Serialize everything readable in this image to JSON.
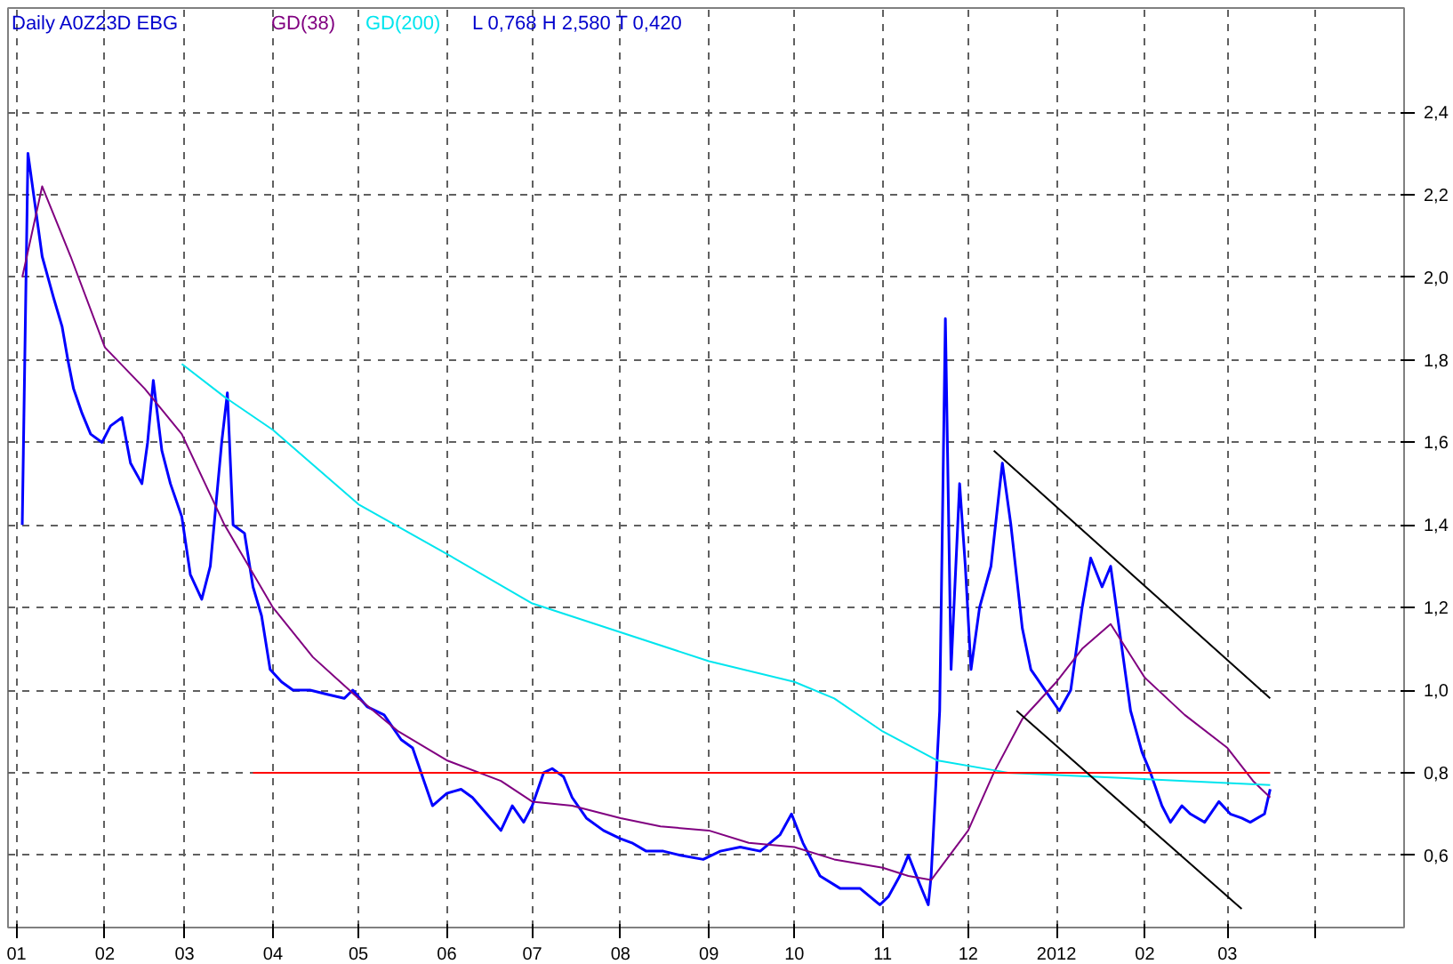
{
  "chart_data": {
    "type": "line",
    "title": "Daily   A0Z23D   EBG",
    "subtitle": "L  0,768     H  2,580     T  0,420",
    "xlim": [
      "2010-12-29",
      "2012-05-02"
    ],
    "ylim": [
      0.425,
      2.652
    ],
    "xticks": [
      {
        "value": "2011-01-01",
        "label": "01"
      },
      {
        "value": "2011-02-01",
        "label": "02"
      },
      {
        "value": "2011-03-01",
        "label": "03"
      },
      {
        "value": "2011-04-01",
        "label": "04"
      },
      {
        "value": "2011-05-01",
        "label": "05"
      },
      {
        "value": "2011-06-01",
        "label": "06"
      },
      {
        "value": "2011-07-01",
        "label": "07"
      },
      {
        "value": "2011-08-01",
        "label": "08"
      },
      {
        "value": "2011-09-01",
        "label": "09"
      },
      {
        "value": "2011-10-01",
        "label": "10"
      },
      {
        "value": "2011-11-01",
        "label": "11"
      },
      {
        "value": "2011-12-01",
        "label": "12"
      },
      {
        "value": "2012-01-01",
        "label": "2012"
      },
      {
        "value": "2012-02-01",
        "label": "02"
      },
      {
        "value": "2012-03-01",
        "label": "03"
      },
      {
        "value": "2012-04-01",
        "label": null
      }
    ],
    "yticks": [
      {
        "value": 0.6,
        "label": "0,6"
      },
      {
        "value": 0.8,
        "label": "0,8"
      },
      {
        "value": 1.0,
        "label": "1,0"
      },
      {
        "value": 1.2,
        "label": "1,2"
      },
      {
        "value": 1.4,
        "label": "1,4"
      },
      {
        "value": 1.6,
        "label": "1,6"
      },
      {
        "value": 1.8,
        "label": "1,8"
      },
      {
        "value": 2.0,
        "label": "2,0"
      },
      {
        "value": 2.2,
        "label": "2,2"
      },
      {
        "value": 2.4,
        "label": "2,4"
      }
    ],
    "grid": true,
    "legend": false,
    "line_style": "solid",
    "marker": "none",
    "series": [
      {
        "color": "#0000ff",
        "x": [
          "2011-01-03",
          "2011-01-05",
          "2011-01-07",
          "2011-01-10",
          "2011-01-12",
          "2011-01-14",
          "2011-01-17",
          "2011-01-19",
          "2011-01-21",
          "2011-01-24",
          "2011-01-27",
          "2011-01-31",
          "2011-02-03",
          "2011-02-07",
          "2011-02-10",
          "2011-02-14",
          "2011-02-16",
          "2011-02-18",
          "2011-02-21",
          "2011-02-24",
          "2011-02-28",
          "2011-03-03",
          "2011-03-07",
          "2011-03-10",
          "2011-03-14",
          "2011-03-16",
          "2011-03-18",
          "2011-03-22",
          "2011-03-25",
          "2011-03-28",
          "2011-03-31",
          "2011-04-04",
          "2011-04-08",
          "2011-04-14",
          "2011-04-20",
          "2011-04-26",
          "2011-04-29",
          "2011-05-04",
          "2011-05-10",
          "2011-05-16",
          "2011-05-20",
          "2011-05-24",
          "2011-05-27",
          "2011-06-01",
          "2011-06-06",
          "2011-06-10",
          "2011-06-15",
          "2011-06-20",
          "2011-06-24",
          "2011-06-28",
          "2011-07-01",
          "2011-07-05",
          "2011-07-08",
          "2011-07-12",
          "2011-07-15",
          "2011-07-20",
          "2011-07-26",
          "2011-08-01",
          "2011-08-05",
          "2011-08-10",
          "2011-08-16",
          "2011-08-22",
          "2011-08-30",
          "2011-09-05",
          "2011-09-12",
          "2011-09-19",
          "2011-09-26",
          "2011-09-30",
          "2011-10-04",
          "2011-10-10",
          "2011-10-17",
          "2011-10-24",
          "2011-10-31",
          "2011-11-03",
          "2011-11-07",
          "2011-11-10",
          "2011-11-14",
          "2011-11-17",
          "2011-11-18",
          "2011-11-21",
          "2011-11-23",
          "2011-11-25",
          "2011-11-28",
          "2011-11-30",
          "2011-12-02",
          "2011-12-05",
          "2011-12-09",
          "2011-12-13",
          "2011-12-16",
          "2011-12-20",
          "2011-12-23",
          "2011-12-28",
          "2012-01-02",
          "2012-01-06",
          "2012-01-10",
          "2012-01-13",
          "2012-01-17",
          "2012-01-20",
          "2012-01-24",
          "2012-01-27",
          "2012-01-31",
          "2012-02-03",
          "2012-02-07",
          "2012-02-10",
          "2012-02-14",
          "2012-02-17",
          "2012-02-22",
          "2012-02-27",
          "2012-03-02",
          "2012-03-06",
          "2012-03-09",
          "2012-03-14",
          "2012-03-16"
        ],
        "values": [
          1.4,
          2.3,
          2.2,
          2.05,
          2.0,
          1.95,
          1.88,
          1.8,
          1.73,
          1.67,
          1.62,
          1.6,
          1.64,
          1.66,
          1.55,
          1.5,
          1.6,
          1.75,
          1.58,
          1.5,
          1.42,
          1.28,
          1.22,
          1.3,
          1.6,
          1.72,
          1.4,
          1.38,
          1.25,
          1.18,
          1.05,
          1.02,
          1.0,
          1.0,
          0.99,
          0.98,
          1.0,
          0.96,
          0.94,
          0.88,
          0.86,
          0.78,
          0.72,
          0.75,
          0.76,
          0.74,
          0.7,
          0.66,
          0.72,
          0.68,
          0.72,
          0.8,
          0.81,
          0.79,
          0.74,
          0.69,
          0.66,
          0.64,
          0.63,
          0.61,
          0.61,
          0.6,
          0.59,
          0.61,
          0.62,
          0.61,
          0.65,
          0.7,
          0.63,
          0.55,
          0.52,
          0.52,
          0.48,
          0.5,
          0.55,
          0.6,
          0.53,
          0.48,
          0.55,
          0.95,
          1.9,
          1.05,
          1.5,
          1.3,
          1.05,
          1.2,
          1.3,
          1.55,
          1.4,
          1.15,
          1.05,
          1.0,
          0.95,
          1.0,
          1.2,
          1.32,
          1.25,
          1.3,
          1.1,
          0.95,
          0.85,
          0.8,
          0.72,
          0.68,
          0.72,
          0.7,
          0.68,
          0.73,
          0.7,
          0.69,
          0.68,
          0.7,
          0.76
        ]
      },
      {
        "name": "GD(38)",
        "color": "#800080",
        "x": [
          "2011-01-03",
          "2011-01-10",
          "2011-01-20",
          "2011-02-01",
          "2011-02-15",
          "2011-02-28",
          "2011-03-15",
          "2011-04-01",
          "2011-04-15",
          "2011-05-01",
          "2011-05-15",
          "2011-06-01",
          "2011-06-20",
          "2011-07-01",
          "2011-07-15",
          "2011-08-01",
          "2011-08-15",
          "2011-09-01",
          "2011-09-15",
          "2011-10-01",
          "2011-10-15",
          "2011-11-01",
          "2011-11-10",
          "2011-11-18",
          "2011-12-01",
          "2011-12-10",
          "2011-12-20",
          "2012-01-01",
          "2012-01-10",
          "2012-01-20",
          "2012-02-01",
          "2012-02-15",
          "2012-03-01",
          "2012-03-10",
          "2012-03-16"
        ],
        "values": [
          2.0,
          2.22,
          2.05,
          1.83,
          1.73,
          1.62,
          1.4,
          1.2,
          1.08,
          0.98,
          0.9,
          0.83,
          0.78,
          0.73,
          0.72,
          0.69,
          0.67,
          0.66,
          0.63,
          0.62,
          0.59,
          0.57,
          0.55,
          0.54,
          0.66,
          0.8,
          0.93,
          1.02,
          1.1,
          1.16,
          1.03,
          0.94,
          0.86,
          0.78,
          0.74
        ]
      },
      {
        "name": "GD(200)",
        "color": "#00e5ee",
        "x": [
          "2011-02-28",
          "2011-03-15",
          "2011-04-01",
          "2011-05-01",
          "2011-06-01",
          "2011-07-01",
          "2011-08-01",
          "2011-09-01",
          "2011-10-01",
          "2011-10-15",
          "2011-11-01",
          "2011-11-20",
          "2011-12-15",
          "2012-01-15",
          "2012-02-15",
          "2012-03-16"
        ],
        "values": [
          1.79,
          1.71,
          1.63,
          1.45,
          1.33,
          1.21,
          1.14,
          1.07,
          1.02,
          0.98,
          0.9,
          0.83,
          0.8,
          0.79,
          0.78,
          0.77
        ]
      },
      {
        "color": "#ff0000",
        "x": [
          "2011-03-25",
          "2012-03-16"
        ],
        "values": [
          0.8,
          0.8
        ]
      },
      {
        "color": "#000000",
        "x": [
          "2011-12-10",
          "2012-03-16"
        ],
        "values": [
          1.58,
          0.98
        ]
      },
      {
        "color": "#000000",
        "x": [
          "2011-12-18",
          "2012-03-06"
        ],
        "values": [
          0.95,
          0.47
        ]
      }
    ]
  }
}
